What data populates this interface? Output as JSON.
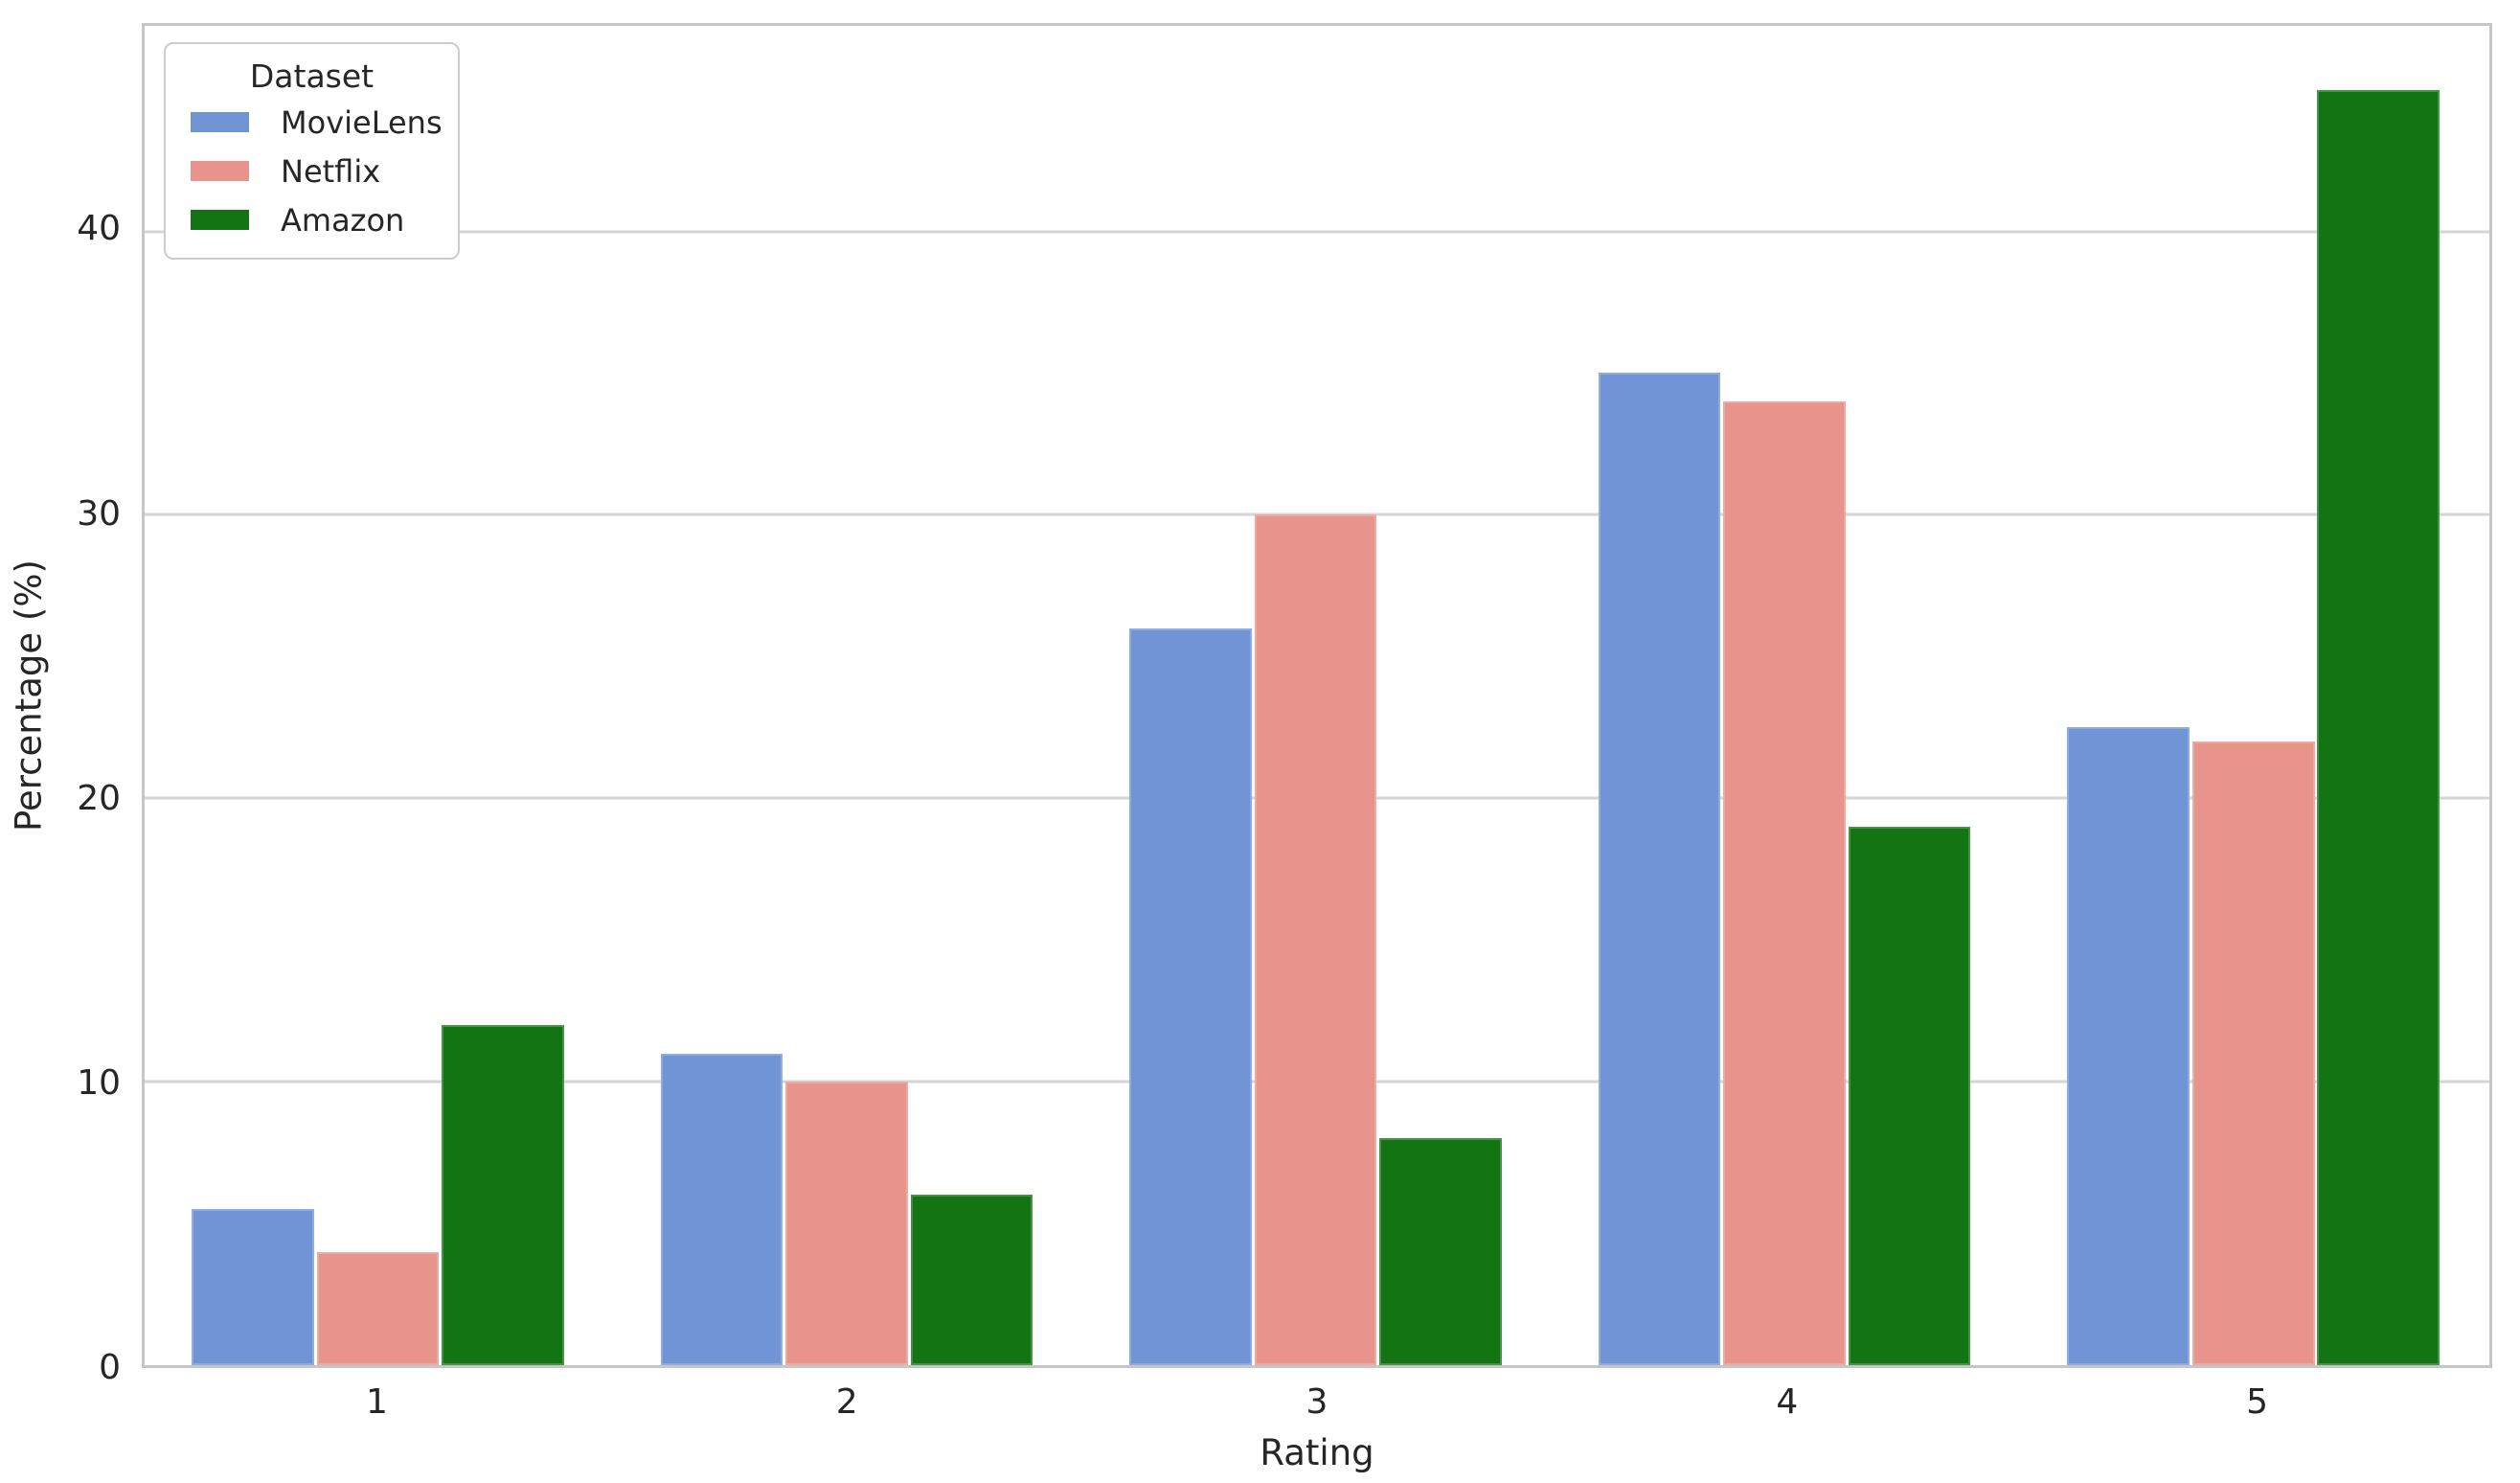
{
  "chart_data": {
    "type": "bar",
    "title": "",
    "xlabel": "Rating",
    "ylabel": "Percentage (%)",
    "categories": [
      "1",
      "2",
      "3",
      "4",
      "5"
    ],
    "series": [
      {
        "name": "MovieLens",
        "color": "#7094d6",
        "values": [
          5.5,
          11,
          26,
          35,
          22.5
        ]
      },
      {
        "name": "Netflix",
        "color": "#e8938b",
        "values": [
          4,
          10,
          30,
          34,
          22
        ]
      },
      {
        "name": "Amazon",
        "color": "#137413",
        "values": [
          12,
          6,
          8,
          19,
          45
        ]
      }
    ],
    "yticks": [
      0,
      10,
      20,
      30,
      40
    ],
    "ylim": [
      0,
      47.25
    ],
    "grid": "horizontal-only",
    "legend_title": "Dataset",
    "legend_position": "upper-left",
    "colors": {
      "gridline": "#d5d5d5",
      "spine": "#c6c6c6",
      "text": "#262626",
      "background": "#ffffff"
    }
  }
}
